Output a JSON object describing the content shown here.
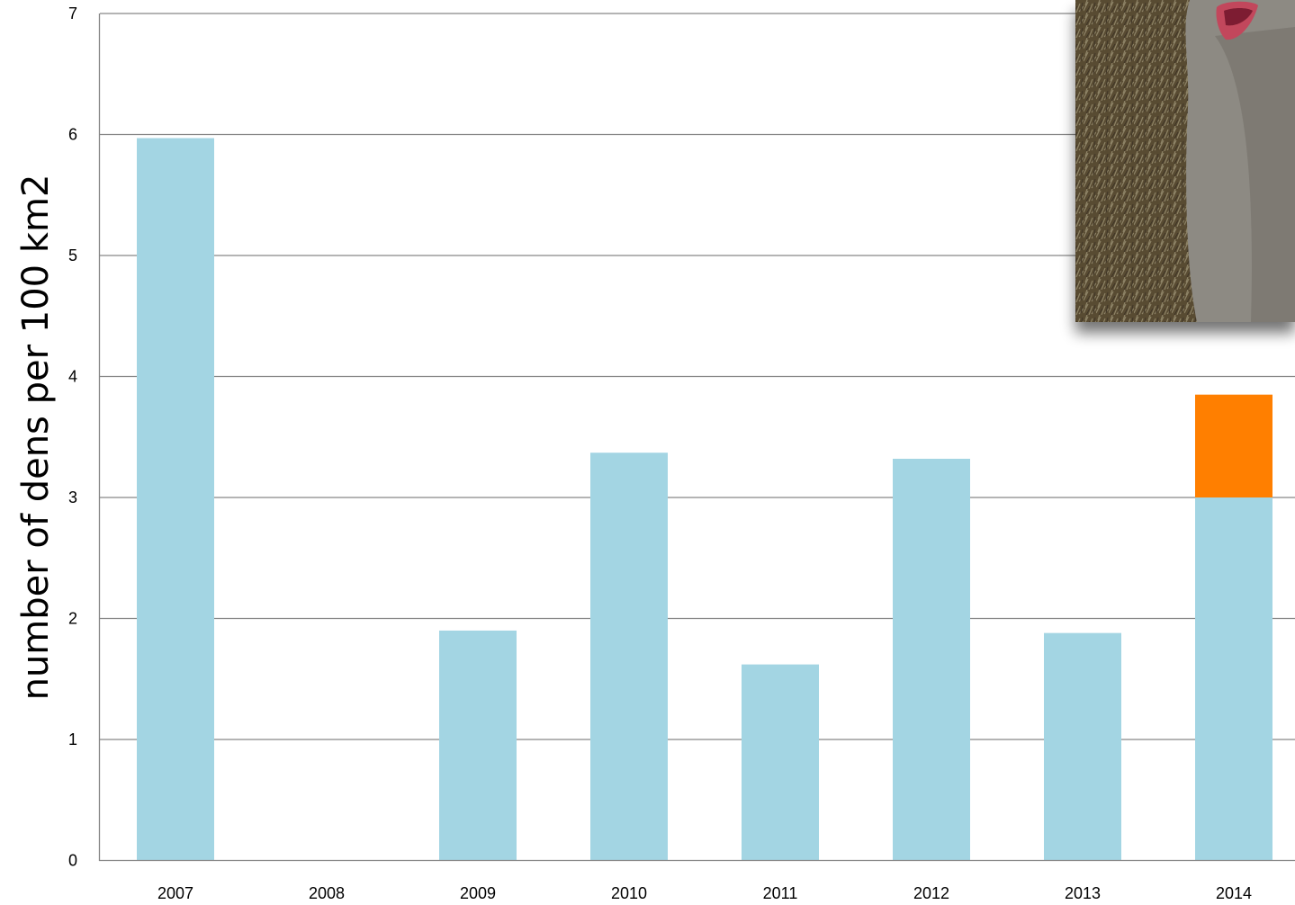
{
  "chart_data": {
    "type": "bar",
    "stacked": true,
    "title": "",
    "xlabel": "",
    "ylabel": "number of dens per 100 km2",
    "ylim": [
      0,
      7
    ],
    "yticks": [
      "0",
      "1",
      "2",
      "3",
      "4",
      "5",
      "6",
      "7"
    ],
    "grid": true,
    "legend": "none",
    "categories": [
      "2007",
      "2008",
      "2009",
      "2010",
      "2011",
      "2012",
      "2013",
      "2014"
    ],
    "series": [
      {
        "color": "#a3d5e3",
        "values": [
          5.97,
          0,
          1.9,
          3.37,
          1.62,
          3.32,
          1.88,
          3.0
        ]
      },
      {
        "color": "#ff7f00",
        "values": [
          0,
          0,
          0,
          0,
          0,
          0,
          0,
          0.85
        ]
      }
    ]
  },
  "photo": {
    "icon": "arctic-fox-photo",
    "colors": {
      "grass": "#6b5a3e",
      "fur": "#8d8a83",
      "mouth": "#c2475b"
    }
  }
}
